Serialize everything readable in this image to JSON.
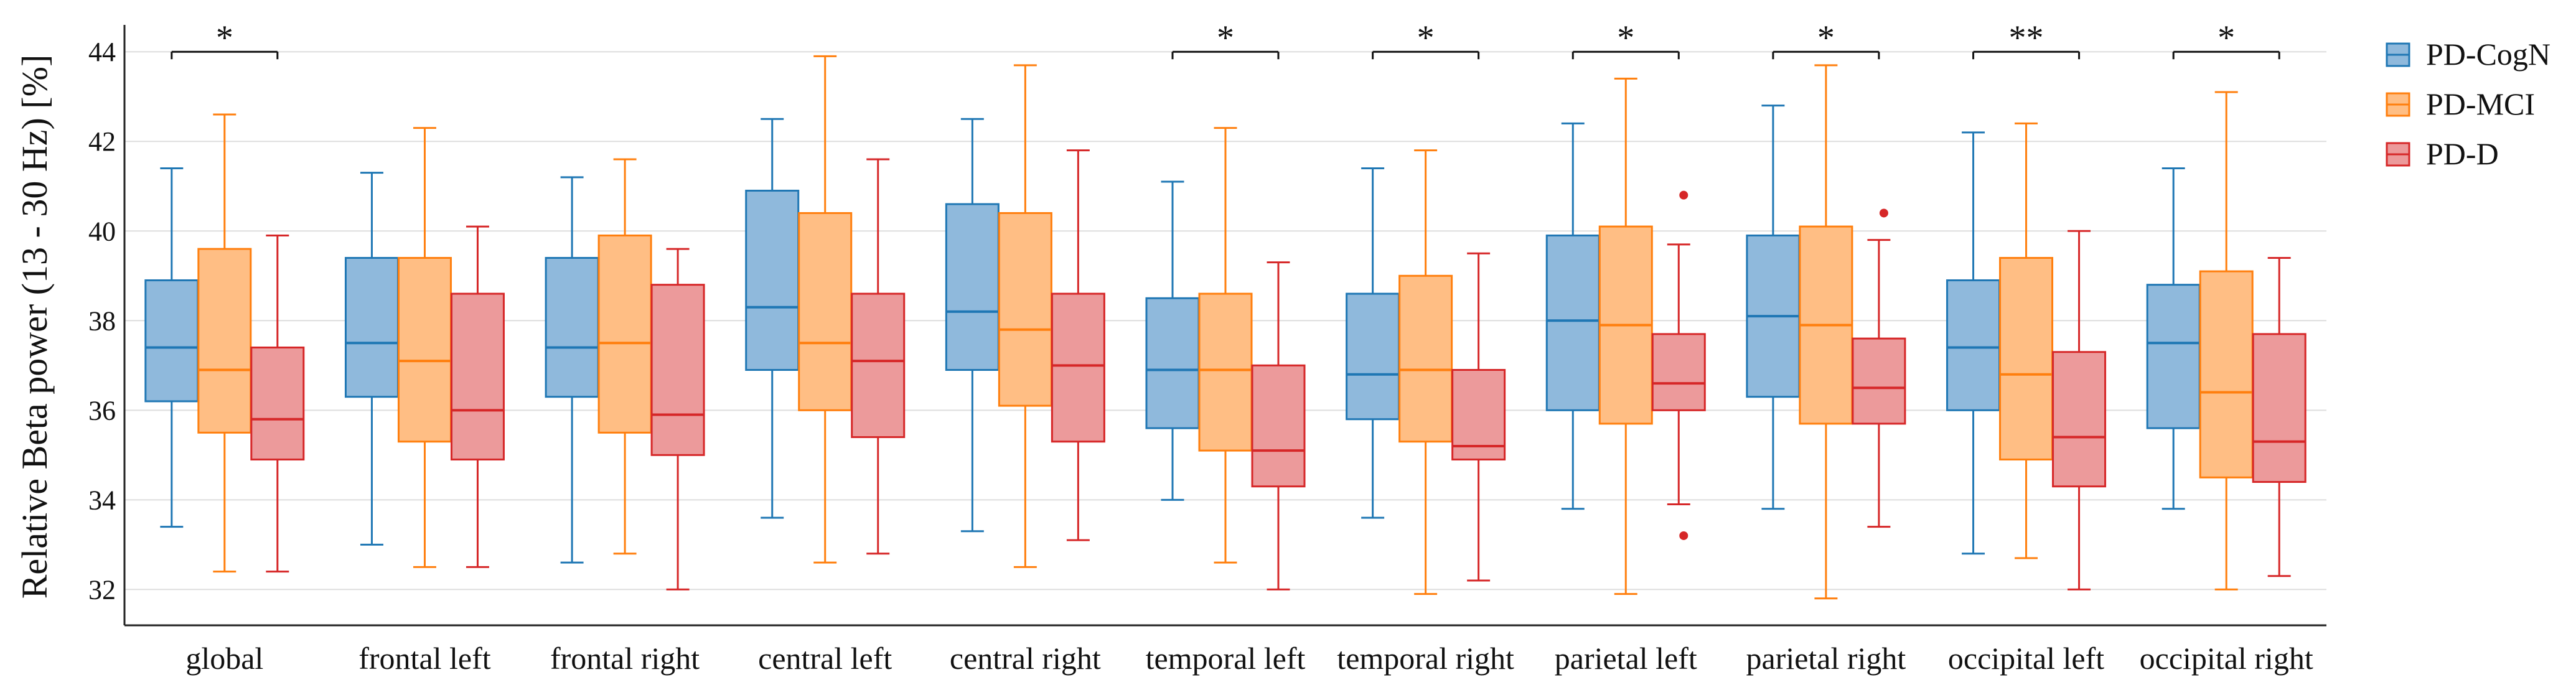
{
  "chart_data": {
    "type": "box",
    "title": "",
    "xlabel": "",
    "ylabel": "Relative Beta power (13 - 30 Hz) [%]",
    "ylim": [
      31.2,
      44.6
    ],
    "yticks": [
      32,
      34,
      36,
      38,
      40,
      42,
      44
    ],
    "grid": true,
    "legend_position": "top-right, outside plot",
    "categories": [
      "global",
      "frontal left",
      "frontal right",
      "central left",
      "central right",
      "temporal left",
      "temporal right",
      "parietal left",
      "parietal right",
      "occipital left",
      "occipital right"
    ],
    "significance": [
      "*",
      "",
      "",
      "",
      "",
      "*",
      "*",
      "*",
      "*",
      "**",
      "*"
    ],
    "series": [
      {
        "name": "PD-CogN",
        "color": "#1f77b4",
        "fill": "#8fb9dc",
        "boxes": [
          {
            "min": 33.4,
            "q1": 36.2,
            "median": 37.4,
            "q3": 38.9,
            "max": 41.4,
            "outliers": []
          },
          {
            "min": 33.0,
            "q1": 36.3,
            "median": 37.5,
            "q3": 39.4,
            "max": 41.3,
            "outliers": []
          },
          {
            "min": 32.6,
            "q1": 36.3,
            "median": 37.4,
            "q3": 39.4,
            "max": 41.2,
            "outliers": []
          },
          {
            "min": 33.6,
            "q1": 36.9,
            "median": 38.3,
            "q3": 40.9,
            "max": 42.5,
            "outliers": []
          },
          {
            "min": 33.3,
            "q1": 36.9,
            "median": 38.2,
            "q3": 40.6,
            "max": 42.5,
            "outliers": []
          },
          {
            "min": 34.0,
            "q1": 35.6,
            "median": 36.9,
            "q3": 38.5,
            "max": 41.1,
            "outliers": []
          },
          {
            "min": 33.6,
            "q1": 35.8,
            "median": 36.8,
            "q3": 38.6,
            "max": 41.4,
            "outliers": []
          },
          {
            "min": 33.8,
            "q1": 36.0,
            "median": 38.0,
            "q3": 39.9,
            "max": 42.4,
            "outliers": []
          },
          {
            "min": 33.8,
            "q1": 36.3,
            "median": 38.1,
            "q3": 39.9,
            "max": 42.8,
            "outliers": []
          },
          {
            "min": 32.8,
            "q1": 36.0,
            "median": 37.4,
            "q3": 38.9,
            "max": 42.2,
            "outliers": []
          },
          {
            "min": 33.8,
            "q1": 35.6,
            "median": 37.5,
            "q3": 38.8,
            "max": 41.4,
            "outliers": []
          }
        ]
      },
      {
        "name": "PD-MCI",
        "color": "#ff7f0e",
        "fill": "#ffbe84",
        "boxes": [
          {
            "min": 32.4,
            "q1": 35.5,
            "median": 36.9,
            "q3": 39.6,
            "max": 42.6,
            "outliers": []
          },
          {
            "min": 32.5,
            "q1": 35.3,
            "median": 37.1,
            "q3": 39.4,
            "max": 42.3,
            "outliers": []
          },
          {
            "min": 32.8,
            "q1": 35.5,
            "median": 37.5,
            "q3": 39.9,
            "max": 41.6,
            "outliers": []
          },
          {
            "min": 32.6,
            "q1": 36.0,
            "median": 37.5,
            "q3": 40.4,
            "max": 43.9,
            "outliers": []
          },
          {
            "min": 32.5,
            "q1": 36.1,
            "median": 37.8,
            "q3": 40.4,
            "max": 43.7,
            "outliers": []
          },
          {
            "min": 32.6,
            "q1": 35.1,
            "median": 36.9,
            "q3": 38.6,
            "max": 42.3,
            "outliers": []
          },
          {
            "min": 31.9,
            "q1": 35.3,
            "median": 36.9,
            "q3": 39.0,
            "max": 41.8,
            "outliers": []
          },
          {
            "min": 31.9,
            "q1": 35.7,
            "median": 37.9,
            "q3": 40.1,
            "max": 43.4,
            "outliers": []
          },
          {
            "min": 31.8,
            "q1": 35.7,
            "median": 37.9,
            "q3": 40.1,
            "max": 43.7,
            "outliers": []
          },
          {
            "min": 32.7,
            "q1": 34.9,
            "median": 36.8,
            "q3": 39.4,
            "max": 42.4,
            "outliers": []
          },
          {
            "min": 32.0,
            "q1": 34.5,
            "median": 36.4,
            "q3": 39.1,
            "max": 43.1,
            "outliers": []
          }
        ]
      },
      {
        "name": "PD-D",
        "color": "#d62728",
        "fill": "#ec9a9b",
        "boxes": [
          {
            "min": 32.4,
            "q1": 34.9,
            "median": 35.8,
            "q3": 37.4,
            "max": 39.9,
            "outliers": []
          },
          {
            "min": 32.5,
            "q1": 34.9,
            "median": 36.0,
            "q3": 38.6,
            "max": 40.1,
            "outliers": []
          },
          {
            "min": 32.0,
            "q1": 35.0,
            "median": 35.9,
            "q3": 38.8,
            "max": 39.6,
            "outliers": []
          },
          {
            "min": 32.8,
            "q1": 35.4,
            "median": 37.1,
            "q3": 38.6,
            "max": 41.6,
            "outliers": []
          },
          {
            "min": 33.1,
            "q1": 35.3,
            "median": 37.0,
            "q3": 38.6,
            "max": 41.8,
            "outliers": []
          },
          {
            "min": 32.0,
            "q1": 34.3,
            "median": 35.1,
            "q3": 37.0,
            "max": 39.3,
            "outliers": []
          },
          {
            "min": 32.2,
            "q1": 34.9,
            "median": 35.2,
            "q3": 36.9,
            "max": 39.5,
            "outliers": []
          },
          {
            "min": 33.9,
            "q1": 36.0,
            "median": 36.6,
            "q3": 37.7,
            "max": 39.7,
            "outliers": [
              40.8,
              33.2
            ]
          },
          {
            "min": 33.4,
            "q1": 35.7,
            "median": 36.5,
            "q3": 37.6,
            "max": 39.8,
            "outliers": [
              40.4
            ]
          },
          {
            "min": 32.0,
            "q1": 34.3,
            "median": 35.4,
            "q3": 37.3,
            "max": 40.0,
            "outliers": []
          },
          {
            "min": 32.3,
            "q1": 34.4,
            "median": 35.3,
            "q3": 37.7,
            "max": 39.4,
            "outliers": []
          }
        ]
      }
    ]
  }
}
